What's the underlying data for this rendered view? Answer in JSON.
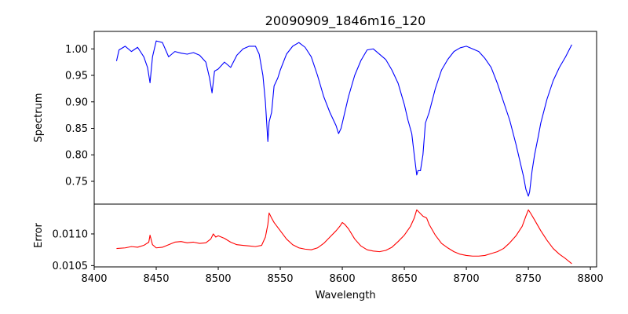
{
  "chart_data": [
    {
      "type": "line",
      "title": "20090909_1846m16_120",
      "xlabel": "",
      "ylabel": "Spectrum",
      "xlim": [
        8400,
        8805
      ],
      "ylim": [
        0.707,
        1.033
      ],
      "yticks": [
        0.75,
        0.8,
        0.85,
        0.9,
        0.95,
        1.0
      ],
      "ytick_labels": [
        "0.75",
        "0.80",
        "0.85",
        "0.90",
        "0.95",
        "1.00"
      ],
      "grid": false,
      "color": "#0000ff",
      "series": [
        {
          "x": [
            8418,
            8420,
            8425,
            8430,
            8435,
            8440,
            8443,
            8445,
            8447,
            8450,
            8455,
            8460,
            8465,
            8470,
            8475,
            8480,
            8485,
            8490,
            8493,
            8495,
            8497,
            8500,
            8505,
            8510,
            8515,
            8520,
            8525,
            8530,
            8533,
            8536,
            8538,
            8540,
            8541,
            8543,
            8545,
            8548,
            8550,
            8555,
            8560,
            8565,
            8570,
            8575,
            8580,
            8585,
            8590,
            8595,
            8597,
            8599,
            8601,
            8605,
            8610,
            8615,
            8620,
            8625,
            8630,
            8635,
            8640,
            8645,
            8650,
            8653,
            8656,
            8658,
            8660,
            8661,
            8663,
            8665,
            8667,
            8670,
            8675,
            8680,
            8685,
            8690,
            8695,
            8700,
            8705,
            8710,
            8715,
            8720,
            8725,
            8730,
            8735,
            8740,
            8743,
            8746,
            8748,
            8750,
            8751,
            8753,
            8755,
            8758,
            8760,
            8765,
            8770,
            8775,
            8780,
            8785
          ],
          "y": [
            0.977,
            0.998,
            1.005,
            0.995,
            1.003,
            0.985,
            0.965,
            0.936,
            0.985,
            1.015,
            1.012,
            0.985,
            0.995,
            0.992,
            0.99,
            0.993,
            0.988,
            0.975,
            0.945,
            0.917,
            0.958,
            0.962,
            0.975,
            0.965,
            0.988,
            1.0,
            1.005,
            1.005,
            0.99,
            0.95,
            0.9,
            0.825,
            0.862,
            0.88,
            0.93,
            0.945,
            0.96,
            0.99,
            1.005,
            1.012,
            1.003,
            0.985,
            0.95,
            0.91,
            0.88,
            0.855,
            0.84,
            0.85,
            0.87,
            0.91,
            0.95,
            0.978,
            0.998,
            1.0,
            0.99,
            0.98,
            0.96,
            0.935,
            0.895,
            0.865,
            0.84,
            0.8,
            0.762,
            0.77,
            0.77,
            0.8,
            0.86,
            0.88,
            0.925,
            0.96,
            0.98,
            0.995,
            1.002,
            1.005,
            1.0,
            0.995,
            0.982,
            0.965,
            0.935,
            0.9,
            0.865,
            0.82,
            0.79,
            0.76,
            0.735,
            0.722,
            0.73,
            0.77,
            0.8,
            0.835,
            0.86,
            0.905,
            0.94,
            0.965,
            0.985,
            1.008
          ]
        }
      ]
    },
    {
      "type": "line",
      "title": "",
      "xlabel": "Wavelength",
      "ylabel": "Error",
      "xlim": [
        8400,
        8805
      ],
      "ylim": [
        0.01048,
        0.01147
      ],
      "xticks": [
        8400,
        8450,
        8500,
        8550,
        8600,
        8650,
        8700,
        8750,
        8800
      ],
      "xtick_labels": [
        "8400",
        "8450",
        "8500",
        "8550",
        "8600",
        "8650",
        "8700",
        "8750",
        "8800"
      ],
      "yticks": [
        0.0105,
        0.011
      ],
      "ytick_labels": [
        "0.0105",
        "0.0110"
      ],
      "grid": false,
      "color": "#ff0000",
      "series": [
        {
          "x": [
            8418,
            8425,
            8430,
            8435,
            8440,
            8444,
            8445,
            8447,
            8450,
            8455,
            8460,
            8465,
            8470,
            8475,
            8480,
            8485,
            8490,
            8494,
            8496,
            8498,
            8500,
            8505,
            8510,
            8515,
            8520,
            8525,
            8530,
            8535,
            8538,
            8540,
            8541,
            8543,
            8545,
            8550,
            8555,
            8560,
            8565,
            8570,
            8575,
            8580,
            8585,
            8590,
            8595,
            8598,
            8600,
            8602,
            8605,
            8610,
            8615,
            8620,
            8625,
            8630,
            8635,
            8640,
            8645,
            8650,
            8655,
            8658,
            8660,
            8661,
            8663,
            8665,
            8668,
            8670,
            8675,
            8680,
            8685,
            8690,
            8695,
            8700,
            8705,
            8710,
            8715,
            8720,
            8725,
            8730,
            8735,
            8740,
            8745,
            8748,
            8750,
            8752,
            8755,
            8760,
            8765,
            8770,
            8775,
            8780,
            8785
          ],
          "y": [
            0.01077,
            0.01078,
            0.0108,
            0.01079,
            0.01082,
            0.01087,
            0.01098,
            0.01083,
            0.01078,
            0.01079,
            0.01083,
            0.01087,
            0.01088,
            0.01086,
            0.01087,
            0.01085,
            0.01086,
            0.01092,
            0.011,
            0.01095,
            0.01097,
            0.01093,
            0.01087,
            0.01083,
            0.01082,
            0.01081,
            0.0108,
            0.01082,
            0.01095,
            0.01115,
            0.01133,
            0.01125,
            0.01118,
            0.01105,
            0.01092,
            0.01083,
            0.01078,
            0.01076,
            0.01075,
            0.01078,
            0.01085,
            0.01095,
            0.01105,
            0.01112,
            0.01118,
            0.01115,
            0.01108,
            0.01092,
            0.01081,
            0.01075,
            0.01073,
            0.01072,
            0.01074,
            0.01079,
            0.01088,
            0.01098,
            0.01112,
            0.01125,
            0.01138,
            0.01136,
            0.01132,
            0.01128,
            0.01125,
            0.01115,
            0.01098,
            0.01085,
            0.01078,
            0.01072,
            0.01068,
            0.01066,
            0.01065,
            0.01065,
            0.01066,
            0.01069,
            0.01072,
            0.01077,
            0.01086,
            0.01097,
            0.01112,
            0.01128,
            0.01138,
            0.01132,
            0.01122,
            0.01105,
            0.0109,
            0.01077,
            0.01068,
            0.01061,
            0.01053
          ]
        }
      ]
    }
  ]
}
